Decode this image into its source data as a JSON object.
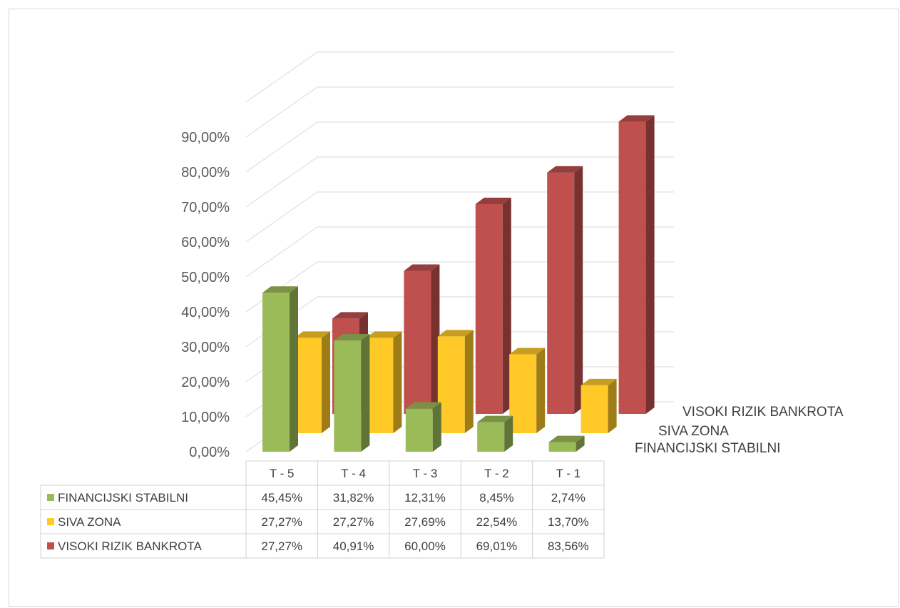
{
  "chart_data": {
    "type": "bar",
    "style": "3d-clustered-columns-with-data-table",
    "title": "",
    "xlabel": "",
    "ylabel": "",
    "categories": [
      "T - 5",
      "T - 4",
      "T - 3",
      "T - 2",
      "T - 1"
    ],
    "y_ticks": [
      "0,00%",
      "10,00%",
      "20,00%",
      "30,00%",
      "40,00%",
      "50,00%",
      "60,00%",
      "70,00%",
      "80,00%",
      "90,00%"
    ],
    "ylim": [
      0,
      100
    ],
    "grid": true,
    "legend": "data-table",
    "series": [
      {
        "name": "FINANCIJSKI STABILNI",
        "color": "#9bbb59",
        "values": [
          45.45,
          31.82,
          12.31,
          8.45,
          2.74
        ],
        "labels": [
          "45,45%",
          "31,82%",
          "12,31%",
          "8,45%",
          "2,74%"
        ]
      },
      {
        "name": "SIVA ZONA",
        "color": "#ffca28",
        "values": [
          27.27,
          27.27,
          27.69,
          22.54,
          13.7
        ],
        "labels": [
          "27,27%",
          "27,27%",
          "27,69%",
          "22,54%",
          "13,70%"
        ]
      },
      {
        "name": "VISOKI RIZIK BANKROTA",
        "color": "#c0504d",
        "values": [
          27.27,
          40.91,
          60.0,
          69.01,
          83.56
        ],
        "labels": [
          "27,27%",
          "40,91%",
          "60,00%",
          "69,01%",
          "83,56%"
        ]
      }
    ]
  }
}
